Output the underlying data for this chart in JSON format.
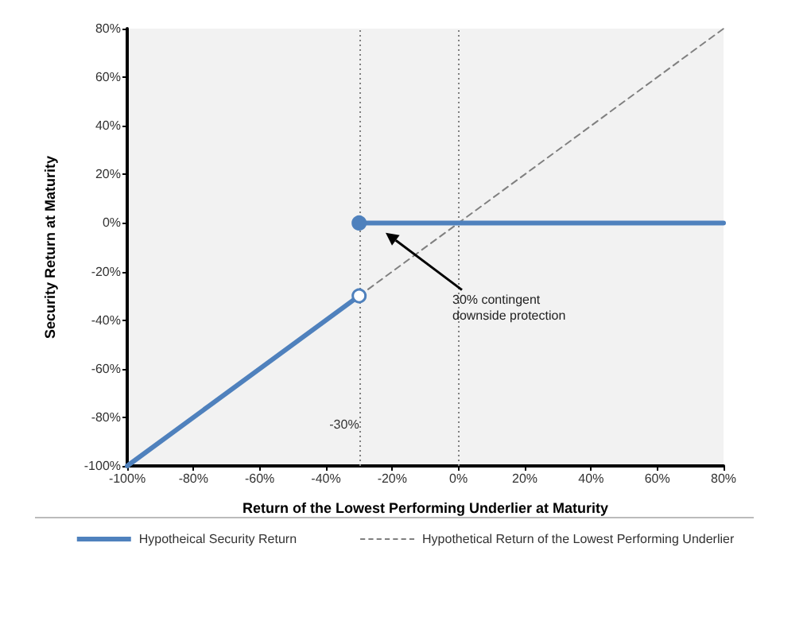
{
  "chart_data": {
    "type": "line",
    "xlabel": "Return of the Lowest Performing Underlier at Maturity",
    "ylabel": "Security Return at Maturity",
    "xlim": [
      -100,
      80
    ],
    "ylim": [
      -100,
      80
    ],
    "xticks": [
      {
        "value": -100,
        "label": "-100%"
      },
      {
        "value": -80,
        "label": "-80%"
      },
      {
        "value": -60,
        "label": "-60%"
      },
      {
        "value": -40,
        "label": "-40%"
      },
      {
        "value": -20,
        "label": "-20%"
      },
      {
        "value": 0,
        "label": "0%"
      },
      {
        "value": 20,
        "label": "20%"
      },
      {
        "value": 40,
        "label": "40%"
      },
      {
        "value": 60,
        "label": "60%"
      },
      {
        "value": 80,
        "label": "80%"
      }
    ],
    "yticks": [
      {
        "value": -100,
        "label": "-100%"
      },
      {
        "value": -80,
        "label": "-80%"
      },
      {
        "value": -60,
        "label": "-60%"
      },
      {
        "value": -40,
        "label": "-40%"
      },
      {
        "value": -20,
        "label": "-20%"
      },
      {
        "value": 0,
        "label": "0%"
      },
      {
        "value": 20,
        "label": "20%"
      },
      {
        "value": 40,
        "label": "40%"
      },
      {
        "value": 60,
        "label": "60%"
      },
      {
        "value": 80,
        "label": "80%"
      }
    ],
    "series": [
      {
        "name": "Hypotheical Security Return",
        "color": "#4f81bd",
        "x": [
          -100,
          -30,
          null,
          -30,
          80
        ],
        "values": [
          -100,
          -30,
          null,
          0,
          0
        ],
        "marker": "circle",
        "line_style": "solid"
      },
      {
        "name": "Hypothetical Return of the Lowest Performing Underlier",
        "color": "#808080",
        "x": [
          -30,
          80
        ],
        "values": [
          -30,
          80
        ],
        "line_style": "dashed"
      }
    ],
    "ref_lines": [
      {
        "axis": "x",
        "value": -30,
        "label": "-30%",
        "color": "#808080",
        "line_style": "dotted"
      },
      {
        "axis": "x",
        "value": 0,
        "color": "#808080",
        "line_style": "dotted"
      }
    ],
    "annotations": [
      {
        "text": "30% contingent downside protection",
        "x": -22,
        "y": -4
      }
    ],
    "grid": false,
    "legend": "bottom"
  }
}
